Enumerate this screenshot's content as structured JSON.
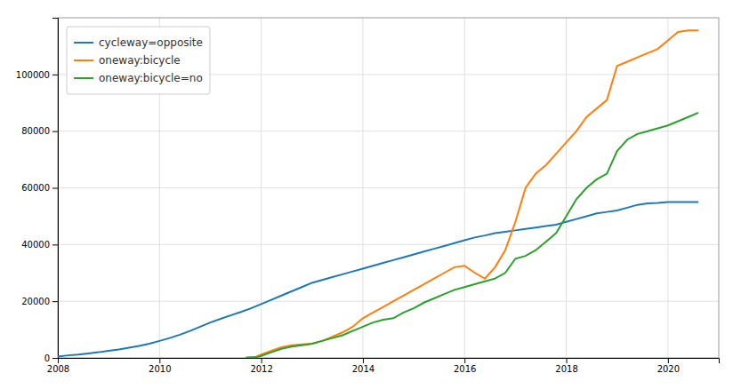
{
  "chart_data": {
    "type": "line",
    "series": [
      {
        "name": "cycleway=opposite",
        "color": "#1f77b4",
        "x": [
          2008.0,
          2008.2,
          2008.4,
          2008.6,
          2008.8,
          2009.0,
          2009.2,
          2009.4,
          2009.6,
          2009.8,
          2010.0,
          2010.2,
          2010.4,
          2010.6,
          2010.8,
          2011.0,
          2011.2,
          2011.4,
          2011.6,
          2011.8,
          2012.0,
          2012.2,
          2012.4,
          2012.6,
          2012.8,
          2013.0,
          2013.2,
          2013.4,
          2013.6,
          2013.8,
          2014.0,
          2014.2,
          2014.4,
          2014.6,
          2014.8,
          2015.0,
          2015.2,
          2015.4,
          2015.6,
          2015.8,
          2016.0,
          2016.2,
          2016.4,
          2016.6,
          2016.8,
          2017.0,
          2017.2,
          2017.4,
          2017.6,
          2017.8,
          2018.0,
          2018.2,
          2018.4,
          2018.6,
          2018.8,
          2019.0,
          2019.2,
          2019.4,
          2019.6,
          2019.8,
          2020.0,
          2020.2,
          2020.4,
          2020.6
        ],
        "values": [
          500,
          900,
          1200,
          1600,
          2000,
          2500,
          3000,
          3600,
          4200,
          5000,
          6000,
          7000,
          8200,
          9500,
          11000,
          12500,
          13800,
          15000,
          16200,
          17500,
          19000,
          20500,
          22000,
          23500,
          25000,
          26500,
          27500,
          28500,
          29500,
          30500,
          31500,
          32500,
          33500,
          34500,
          35500,
          36500,
          37500,
          38500,
          39500,
          40500,
          41500,
          42500,
          43200,
          44000,
          44500,
          45000,
          45500,
          46000,
          46500,
          47000,
          48000,
          49000,
          50000,
          51000,
          51500,
          52000,
          53000,
          54000,
          54500,
          54700,
          55000,
          55000,
          55000,
          55000
        ]
      },
      {
        "name": "oneway:bicycle",
        "color": "#ff7f0e",
        "x": [
          2011.7,
          2011.9,
          2012.0,
          2012.2,
          2012.4,
          2012.6,
          2012.8,
          2013.0,
          2013.2,
          2013.4,
          2013.6,
          2013.8,
          2014.0,
          2014.2,
          2014.4,
          2014.6,
          2014.8,
          2015.0,
          2015.2,
          2015.4,
          2015.6,
          2015.8,
          2016.0,
          2016.2,
          2016.4,
          2016.6,
          2016.8,
          2017.0,
          2017.2,
          2017.4,
          2017.6,
          2017.8,
          2018.0,
          2018.2,
          2018.4,
          2018.6,
          2018.8,
          2019.0,
          2019.2,
          2019.4,
          2019.6,
          2019.8,
          2020.0,
          2020.2,
          2020.4,
          2020.6
        ],
        "values": [
          100,
          400,
          1200,
          2500,
          3800,
          4500,
          4800,
          5000,
          6000,
          7500,
          9000,
          11000,
          14000,
          16000,
          18000,
          20000,
          22000,
          24000,
          26000,
          28000,
          30000,
          32000,
          32500,
          30000,
          28000,
          32000,
          38000,
          48000,
          60000,
          65000,
          68000,
          72000,
          76000,
          80000,
          85000,
          88000,
          91000,
          103000,
          104500,
          106000,
          107500,
          109000,
          112000,
          115000,
          115500,
          115500
        ]
      },
      {
        "name": "oneway:bicycle=no",
        "color": "#2ca02c",
        "x": [
          2011.7,
          2011.9,
          2012.0,
          2012.2,
          2012.4,
          2012.6,
          2012.8,
          2013.0,
          2013.2,
          2013.4,
          2013.6,
          2013.8,
          2014.0,
          2014.2,
          2014.4,
          2014.6,
          2014.8,
          2015.0,
          2015.2,
          2015.4,
          2015.6,
          2015.8,
          2016.0,
          2016.2,
          2016.4,
          2016.6,
          2016.8,
          2017.0,
          2017.2,
          2017.4,
          2017.6,
          2017.8,
          2018.0,
          2018.2,
          2018.4,
          2018.6,
          2018.8,
          2019.0,
          2019.2,
          2019.4,
          2019.6,
          2019.8,
          2020.0,
          2020.2,
          2020.4,
          2020.6
        ],
        "values": [
          50,
          200,
          700,
          2000,
          3200,
          4000,
          4500,
          5000,
          6000,
          7000,
          8000,
          9500,
          11000,
          12500,
          13500,
          14000,
          16000,
          17500,
          19500,
          21000,
          22500,
          24000,
          25000,
          26000,
          27000,
          28000,
          30000,
          35000,
          36000,
          38000,
          41000,
          44000,
          50000,
          56000,
          60000,
          63000,
          65000,
          73000,
          77000,
          79000,
          80000,
          81000,
          82000,
          83500,
          85000,
          86500
        ]
      }
    ],
    "xlim": [
      2008,
      2021
    ],
    "ylim": [
      0,
      120000
    ],
    "xticks": [
      2008,
      2010,
      2012,
      2014,
      2016,
      2018,
      2020
    ],
    "yticks": [
      0,
      20000,
      40000,
      60000,
      80000,
      100000
    ],
    "grid": true,
    "legend": "upper left"
  }
}
